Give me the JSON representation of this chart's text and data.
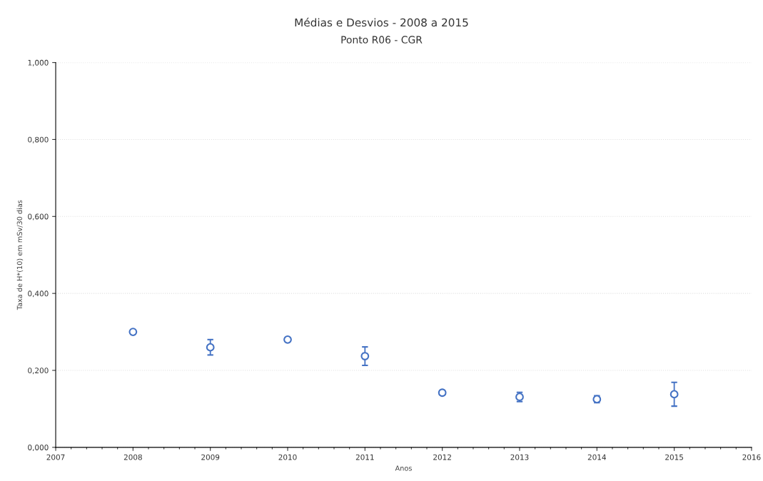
{
  "chart_data": {
    "type": "scatter",
    "title": "Médias e Desvios - 2008 a 2015",
    "subtitle": "Ponto R06 - CGR",
    "xlabel": "Anos",
    "ylabel": "Taxa de H*(10) em mSv/30 dias",
    "x": [
      2008,
      2009,
      2010,
      2011,
      2012,
      2013,
      2014,
      2015
    ],
    "series": [
      {
        "color": "#4472c4",
        "values": [
          0.3,
          0.26,
          0.28,
          0.237,
          0.142,
          0.131,
          0.125,
          0.138
        ],
        "errors": [
          null,
          0.02,
          0.005,
          0.024,
          0.005,
          0.012,
          0.009,
          0.031
        ]
      }
    ],
    "marker": "circle",
    "grid": "y",
    "xlim": [
      2007,
      2016
    ],
    "xticks": [
      2007,
      2008,
      2009,
      2010,
      2011,
      2012,
      2013,
      2014,
      2015,
      2016
    ],
    "ylim": [
      0,
      1
    ],
    "yticks": [
      {
        "value": 0,
        "label": "0,000"
      },
      {
        "value": 0.2,
        "label": "0,200"
      },
      {
        "value": 0.4,
        "label": "0,400"
      },
      {
        "value": 0.6,
        "label": "0,600"
      },
      {
        "value": 0.8,
        "label": "0,800"
      },
      {
        "value": 1,
        "label": "1,000"
      }
    ]
  }
}
